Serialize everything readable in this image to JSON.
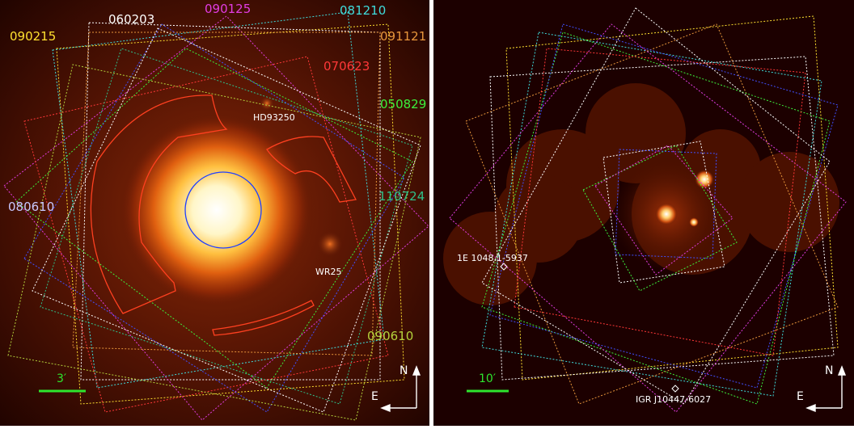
{
  "left_panel": {
    "observations": [
      {
        "id": "090215",
        "color": "#ffe030"
      },
      {
        "id": "060203",
        "color": "#ffffff"
      },
      {
        "id": "090125",
        "color": "#e23ce2"
      },
      {
        "id": "081210",
        "color": "#3fdcdc"
      },
      {
        "id": "091121",
        "color": "#e8963c"
      },
      {
        "id": "070623",
        "color": "#ff3838"
      },
      {
        "id": "050829",
        "color": "#3cf03c"
      },
      {
        "id": "110724",
        "color": "#2ec08a"
      },
      {
        "id": "080610",
        "color": "#c8c8ff"
      },
      {
        "id": "090610",
        "color": "#b4d23c"
      }
    ],
    "sources": [
      {
        "name": "HD93250"
      },
      {
        "name": "WR25"
      }
    ],
    "scale_bar": {
      "label": "3′",
      "color": "#2ee62e"
    },
    "compass": {
      "north": "N",
      "east": "E"
    }
  },
  "right_panel": {
    "sources": [
      {
        "name": "1E 1048.1-5937"
      },
      {
        "name": "IGR J10447-6027"
      }
    ],
    "scale_bar": {
      "label": "10′",
      "color": "#2ee62e"
    },
    "compass": {
      "north": "N",
      "east": "E"
    }
  }
}
